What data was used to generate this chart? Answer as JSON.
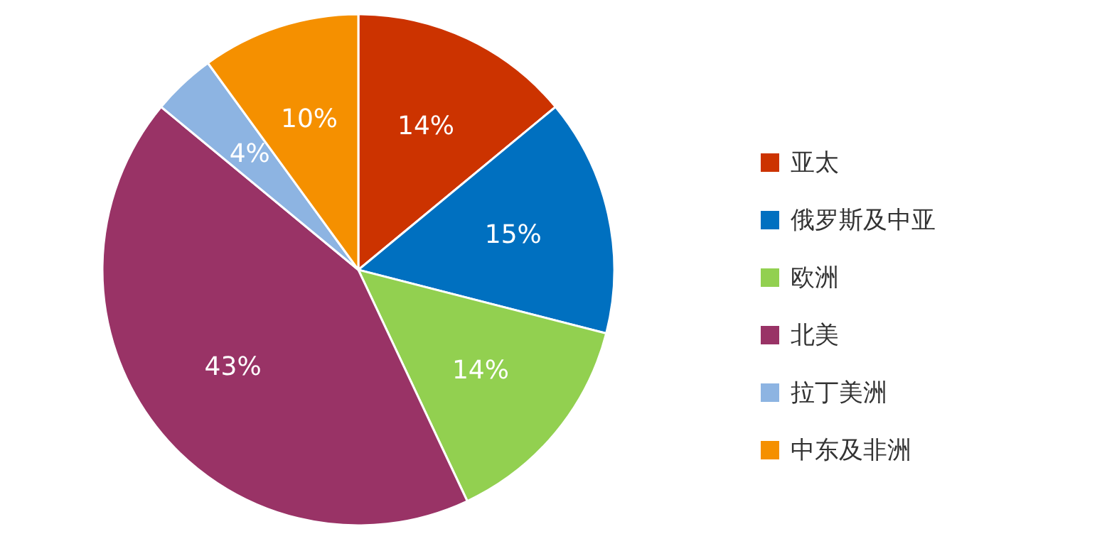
{
  "chart_data": {
    "type": "pie",
    "categories": [
      "亚太",
      "俄罗斯及中亚",
      "欧洲",
      "北美",
      "拉丁美洲",
      "中东及非洲"
    ],
    "values": [
      14,
      15,
      14,
      43,
      4,
      10
    ],
    "colors": [
      "#cc3300",
      "#0070c0",
      "#92d050",
      "#993366",
      "#8db4e2",
      "#f59000"
    ],
    "value_labels": [
      "14%",
      "15%",
      "14%",
      "43%",
      "4%",
      "10%"
    ],
    "legend": "right"
  }
}
